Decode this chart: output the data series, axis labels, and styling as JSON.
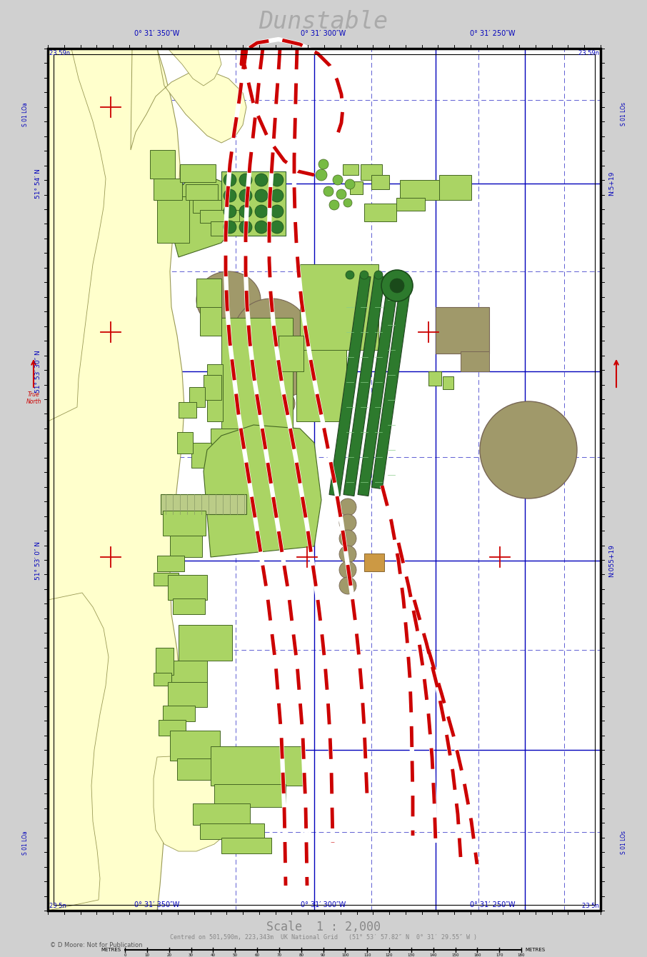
{
  "title": "Dunstable",
  "scale_text": "Scale  1 : 2,000",
  "center_text": "Centred on 501,590m, 223,343m  UK National Grid   (51° 53′ 57.82″ N  0° 31′ 29.55″ W )",
  "copyright_text": "© D Moore: Not for Publication",
  "bg_color": "#d0d0d0",
  "map_bg": "#ffffff",
  "land_color": "#ffffcc",
  "lg": "#aad464",
  "dg": "#2d7a2d",
  "mg": "#77bb44",
  "tan": "#a0996a",
  "brown": "#8b7355",
  "rail_red": "#cc0000",
  "blue": "#0000bb",
  "dash_blue": "#4444cc",
  "red_cross": "#cc0000",
  "north_red": "#cc0000",
  "grey_text": "#999999",
  "top_labels": [
    "0° 31′ 350″W",
    "0° 31′ 300″W",
    "0° 31′ 250″W"
  ],
  "left_labels": [
    "51° 54′ N",
    "51° 53′ 30″ N",
    "51° 53′ 0″ N"
  ],
  "xlim": [
    0,
    906
  ],
  "ylim": [
    0,
    1340
  ]
}
